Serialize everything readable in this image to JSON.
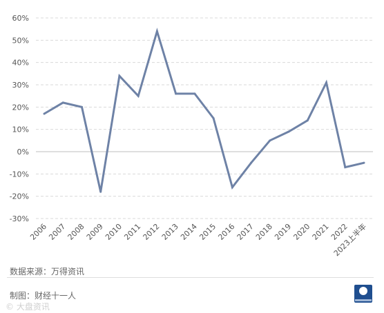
{
  "chart_data": {
    "type": "line",
    "categories": [
      "2006",
      "2007",
      "2008",
      "2009",
      "2010",
      "2011",
      "2012",
      "2013",
      "2014",
      "2015",
      "2016",
      "2017",
      "2018",
      "2019",
      "2020",
      "2021",
      "2022",
      "2023上半年"
    ],
    "series": [
      {
        "values": [
          17,
          22,
          20,
          -18,
          34,
          25,
          54,
          26,
          26,
          15,
          -16,
          -5,
          5,
          9,
          14,
          31,
          -7,
          -5
        ]
      }
    ],
    "ylim": [
      -30,
      60
    ],
    "yticks": [
      "-30%",
      "-20%",
      "-10%",
      "0%",
      "10%",
      "20%",
      "30%",
      "40%",
      "50%",
      "60%"
    ],
    "ytick_values": [
      -30,
      -20,
      -10,
      0,
      10,
      20,
      30,
      40,
      50,
      60
    ],
    "grid": "horizontal-dashed",
    "line_color": "#6e82a6"
  },
  "source_text": "数据来源：万得资讯",
  "maker_text": "制图：财经十一人",
  "watermark_text": "© 大盘资讯"
}
